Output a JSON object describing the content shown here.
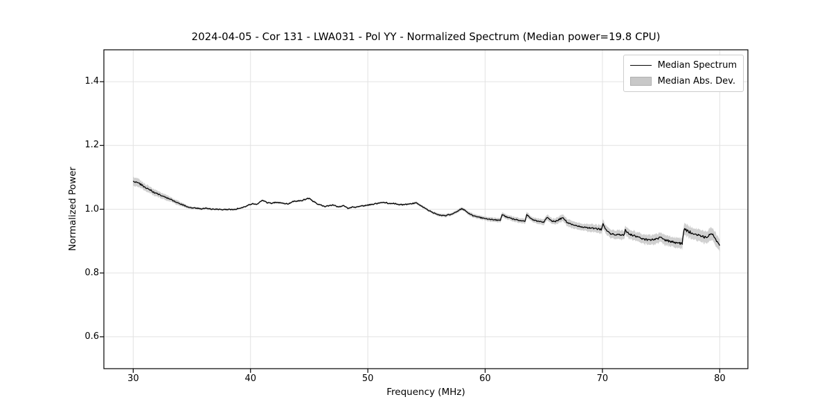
{
  "figure": {
    "title": "2024-04-05 - Cor 131 - LWA031 - Pol YY - Normalized Spectrum (Median power=19.8 CPU)",
    "xlabel": "Frequency (MHz)",
    "ylabel": "Normalized Power"
  },
  "legend": {
    "entries": [
      {
        "label": "Median Spectrum",
        "swatch": "line"
      },
      {
        "label": "Median Abs. Dev.",
        "swatch": "patch"
      }
    ]
  },
  "colors": {
    "line": "#000000",
    "band": "#c8c8c8",
    "grid": "#e2e2e2",
    "frame": "#000000",
    "text": "#000000",
    "background": "#ffffff",
    "legend_border": "#cccccc"
  },
  "chart_data": {
    "type": "line",
    "title": "2024-04-05 - Cor 131 - LWA031 - Pol YY - Normalized Spectrum (Median power=19.8 CPU)",
    "xlabel": "Frequency (MHz)",
    "ylabel": "Normalized Power",
    "xlim": [
      27.5,
      82.4
    ],
    "ylim": [
      0.5,
      1.5
    ],
    "xticks": [
      30,
      40,
      50,
      60,
      70,
      80
    ],
    "xtick_labels": [
      "30",
      "40",
      "50",
      "60",
      "70",
      "80"
    ],
    "yticks": [
      0.6,
      0.8,
      1.0,
      1.2,
      1.4
    ],
    "ytick_labels": [
      "0.6",
      "0.8",
      "1.0",
      "1.2",
      "1.4"
    ],
    "grid": true,
    "legend_position": "upper right",
    "series": [
      {
        "name": "Median Spectrum",
        "type": "line",
        "color": "#000000"
      },
      {
        "name": "Median Abs. Dev.",
        "type": "band_around_line",
        "color": "#c8c8c8"
      }
    ],
    "points_format": [
      "frequency_mhz",
      "median_power",
      "median_abs_dev"
    ],
    "points": [
      [
        30.0,
        1.09,
        0.014
      ],
      [
        30.3,
        1.083,
        0.013
      ],
      [
        30.6,
        1.079,
        0.012
      ],
      [
        31.0,
        1.068,
        0.011
      ],
      [
        31.4,
        1.062,
        0.01
      ],
      [
        31.8,
        1.052,
        0.01
      ],
      [
        32.2,
        1.046,
        0.009
      ],
      [
        32.6,
        1.039,
        0.009
      ],
      [
        33.0,
        1.034,
        0.008
      ],
      [
        33.4,
        1.027,
        0.007
      ],
      [
        33.8,
        1.02,
        0.007
      ],
      [
        34.2,
        1.014,
        0.006
      ],
      [
        34.6,
        1.008,
        0.005
      ],
      [
        35.0,
        1.005,
        0.004
      ],
      [
        35.4,
        1.003,
        0.004
      ],
      [
        35.8,
        1.001,
        0.004
      ],
      [
        36.2,
        1.003,
        0.004
      ],
      [
        36.6,
        1.001,
        0.004
      ],
      [
        37.0,
        1.0,
        0.003
      ],
      [
        37.4,
        0.999,
        0.003
      ],
      [
        37.8,
        0.999,
        0.003
      ],
      [
        38.2,
        1.0,
        0.003
      ],
      [
        38.6,
        0.998,
        0.003
      ],
      [
        39.0,
        1.003,
        0.003
      ],
      [
        39.4,
        1.006,
        0.003
      ],
      [
        39.8,
        1.013,
        0.003
      ],
      [
        40.2,
        1.018,
        0.003
      ],
      [
        40.5,
        1.014,
        0.003
      ],
      [
        41.0,
        1.029,
        0.003
      ],
      [
        41.4,
        1.021,
        0.003
      ],
      [
        41.8,
        1.019,
        0.003
      ],
      [
        42.2,
        1.022,
        0.003
      ],
      [
        42.6,
        1.02,
        0.003
      ],
      [
        43.2,
        1.017,
        0.003
      ],
      [
        43.6,
        1.024,
        0.003
      ],
      [
        44.0,
        1.026,
        0.003
      ],
      [
        44.4,
        1.028,
        0.003
      ],
      [
        44.7,
        1.031,
        0.003
      ],
      [
        45.0,
        1.035,
        0.003
      ],
      [
        45.3,
        1.026,
        0.003
      ],
      [
        45.7,
        1.017,
        0.003
      ],
      [
        46.3,
        1.008,
        0.003
      ],
      [
        46.7,
        1.011,
        0.003
      ],
      [
        47.0,
        1.014,
        0.003
      ],
      [
        47.5,
        1.007,
        0.003
      ],
      [
        48.0,
        1.011,
        0.003
      ],
      [
        48.3,
        1.003,
        0.003
      ],
      [
        48.7,
        1.007,
        0.003
      ],
      [
        49.0,
        1.006,
        0.003
      ],
      [
        49.5,
        1.01,
        0.003
      ],
      [
        50.0,
        1.013,
        0.003
      ],
      [
        50.5,
        1.016,
        0.003
      ],
      [
        51.0,
        1.02,
        0.003
      ],
      [
        51.4,
        1.022,
        0.003
      ],
      [
        51.8,
        1.018,
        0.003
      ],
      [
        52.2,
        1.019,
        0.003
      ],
      [
        52.6,
        1.015,
        0.003
      ],
      [
        53.0,
        1.014,
        0.003
      ],
      [
        53.5,
        1.016,
        0.003
      ],
      [
        54.1,
        1.02,
        0.004
      ],
      [
        54.5,
        1.012,
        0.004
      ],
      [
        55.0,
        1.0,
        0.004
      ],
      [
        55.5,
        0.99,
        0.004
      ],
      [
        56.0,
        0.983,
        0.005
      ],
      [
        56.5,
        0.979,
        0.005
      ],
      [
        57.0,
        0.983,
        0.005
      ],
      [
        57.5,
        0.99,
        0.005
      ],
      [
        58.0,
        1.002,
        0.005
      ],
      [
        58.3,
        0.996,
        0.005
      ],
      [
        58.7,
        0.985,
        0.006
      ],
      [
        59.0,
        0.979,
        0.006
      ],
      [
        59.5,
        0.975,
        0.006
      ],
      [
        60.0,
        0.97,
        0.006
      ],
      [
        60.5,
        0.968,
        0.007
      ],
      [
        61.0,
        0.966,
        0.007
      ],
      [
        61.3,
        0.965,
        0.007
      ],
      [
        61.45,
        0.984,
        0.007
      ],
      [
        61.8,
        0.976,
        0.007
      ],
      [
        62.2,
        0.971,
        0.007
      ],
      [
        62.6,
        0.968,
        0.008
      ],
      [
        63.0,
        0.965,
        0.008
      ],
      [
        63.4,
        0.963,
        0.008
      ],
      [
        63.55,
        0.983,
        0.008
      ],
      [
        63.9,
        0.97,
        0.008
      ],
      [
        64.3,
        0.964,
        0.008
      ],
      [
        64.7,
        0.961,
        0.009
      ],
      [
        65.0,
        0.96,
        0.009
      ],
      [
        65.3,
        0.974,
        0.009
      ],
      [
        65.7,
        0.963,
        0.009
      ],
      [
        66.0,
        0.961,
        0.01
      ],
      [
        66.4,
        0.97,
        0.01
      ],
      [
        66.7,
        0.972,
        0.01
      ],
      [
        67.0,
        0.957,
        0.011
      ],
      [
        67.5,
        0.95,
        0.011
      ],
      [
        68.0,
        0.946,
        0.011
      ],
      [
        68.5,
        0.944,
        0.011
      ],
      [
        69.0,
        0.941,
        0.012
      ],
      [
        69.5,
        0.939,
        0.012
      ],
      [
        69.9,
        0.937,
        0.013
      ],
      [
        70.05,
        0.953,
        0.013
      ],
      [
        70.4,
        0.93,
        0.013
      ],
      [
        70.7,
        0.924,
        0.013
      ],
      [
        71.0,
        0.921,
        0.013
      ],
      [
        71.5,
        0.92,
        0.014
      ],
      [
        71.85,
        0.918,
        0.014
      ],
      [
        71.95,
        0.934,
        0.014
      ],
      [
        72.3,
        0.921,
        0.014
      ],
      [
        72.7,
        0.917,
        0.014
      ],
      [
        73.0,
        0.912,
        0.014
      ],
      [
        73.5,
        0.906,
        0.015
      ],
      [
        74.0,
        0.903,
        0.015
      ],
      [
        74.5,
        0.905,
        0.015
      ],
      [
        75.0,
        0.911,
        0.015
      ],
      [
        75.3,
        0.904,
        0.016
      ],
      [
        75.7,
        0.9,
        0.016
      ],
      [
        76.0,
        0.897,
        0.016
      ],
      [
        76.4,
        0.893,
        0.016
      ],
      [
        76.8,
        0.892,
        0.017
      ],
      [
        76.95,
        0.938,
        0.017
      ],
      [
        77.3,
        0.931,
        0.018
      ],
      [
        77.7,
        0.925,
        0.018
      ],
      [
        78.0,
        0.92,
        0.018
      ],
      [
        78.4,
        0.915,
        0.018
      ],
      [
        78.8,
        0.912,
        0.019
      ],
      [
        79.1,
        0.918,
        0.019
      ],
      [
        79.4,
        0.92,
        0.019
      ],
      [
        79.6,
        0.908,
        0.02
      ],
      [
        79.8,
        0.895,
        0.02
      ],
      [
        80.0,
        0.886,
        0.02
      ]
    ]
  }
}
